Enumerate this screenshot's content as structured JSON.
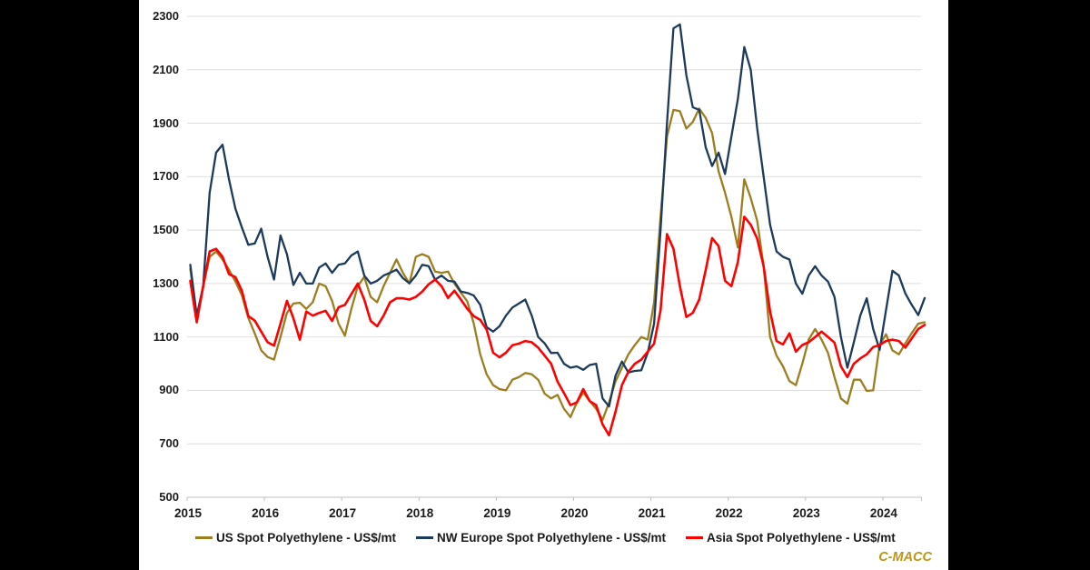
{
  "brand": "C-MACC",
  "chart_data": {
    "type": "line",
    "title": "",
    "xlabel": "",
    "ylabel": "",
    "x_start_year": 2015,
    "x_frequency": "monthly",
    "x_tick_labels": [
      "2015",
      "2016",
      "2017",
      "2018",
      "2019",
      "2020",
      "2021",
      "2022",
      "2023",
      "2024"
    ],
    "y_tick_labels": [
      "500",
      "700",
      "900",
      "1100",
      "1300",
      "1500",
      "1700",
      "1900",
      "2100",
      "2300"
    ],
    "ylim": [
      500,
      2300
    ],
    "grid": "horizontal",
    "legend_position": "bottom",
    "series": [
      {
        "name": "US Spot Polyethylene - US$/mt",
        "color": "#9E7D1E",
        "values": [
          1355,
          1165,
          1290,
          1400,
          1420,
          1390,
          1352,
          1307,
          1256,
          1171,
          1113,
          1050,
          1025,
          1015,
          1100,
          1190,
          1225,
          1228,
          1205,
          1230,
          1300,
          1290,
          1235,
          1150,
          1105,
          1205,
          1290,
          1325,
          1250,
          1230,
          1290,
          1340,
          1390,
          1340,
          1300,
          1400,
          1410,
          1400,
          1345,
          1340,
          1345,
          1300,
          1266,
          1233,
          1150,
          1035,
          960,
          920,
          905,
          900,
          940,
          950,
          965,
          960,
          940,
          888,
          870,
          883,
          831,
          800,
          854,
          892,
          860,
          831,
          790,
          855,
          933,
          985,
          1035,
          1070,
          1100,
          1090,
          1230,
          1550,
          1850,
          1950,
          1945,
          1880,
          1905,
          1955,
          1920,
          1863,
          1720,
          1640,
          1550,
          1435,
          1690,
          1620,
          1535,
          1365,
          1100,
          1030,
          990,
          935,
          920,
          1000,
          1090,
          1130,
          1090,
          1040,
          950,
          870,
          850,
          940,
          940,
          898,
          900,
          1070,
          1110,
          1050,
          1035,
          1076,
          1115,
          1150,
          1155
        ]
      },
      {
        "name": "NW Europe Spot Polyethylene - US$/mt",
        "color": "#1B3A5C",
        "values": [
          1370,
          1180,
          1290,
          1640,
          1790,
          1820,
          1690,
          1580,
          1510,
          1445,
          1450,
          1505,
          1400,
          1315,
          1480,
          1410,
          1295,
          1340,
          1300,
          1300,
          1360,
          1375,
          1340,
          1370,
          1375,
          1405,
          1420,
          1330,
          1300,
          1310,
          1330,
          1340,
          1352,
          1320,
          1301,
          1330,
          1370,
          1365,
          1315,
          1330,
          1310,
          1307,
          1270,
          1265,
          1255,
          1220,
          1137,
          1120,
          1140,
          1180,
          1210,
          1225,
          1240,
          1180,
          1100,
          1076,
          1040,
          1041,
          1000,
          985,
          990,
          977,
          995,
          1000,
          870,
          840,
          955,
          1008,
          967,
          973,
          975,
          1041,
          1150,
          1500,
          1900,
          2255,
          2270,
          2080,
          1960,
          1950,
          1810,
          1740,
          1790,
          1710,
          1850,
          1990,
          2185,
          2100,
          1880,
          1700,
          1520,
          1420,
          1400,
          1390,
          1300,
          1262,
          1330,
          1365,
          1330,
          1307,
          1250,
          1100,
          985,
          1080,
          1180,
          1245,
          1130,
          1052,
          1200,
          1348,
          1330,
          1263,
          1220,
          1182,
          1246
        ]
      },
      {
        "name": "Asia Spot Polyethylene - US$/mt",
        "color": "#FE0000",
        "values": [
          1310,
          1155,
          1290,
          1420,
          1430,
          1400,
          1335,
          1324,
          1273,
          1178,
          1161,
          1120,
          1080,
          1068,
          1150,
          1235,
          1170,
          1090,
          1195,
          1180,
          1190,
          1198,
          1160,
          1211,
          1220,
          1260,
          1300,
          1240,
          1160,
          1140,
          1180,
          1230,
          1245,
          1245,
          1240,
          1250,
          1270,
          1297,
          1315,
          1290,
          1246,
          1273,
          1240,
          1205,
          1178,
          1164,
          1127,
          1041,
          1024,
          1041,
          1069,
          1075,
          1085,
          1080,
          1060,
          1030,
          1000,
          933,
          890,
          845,
          855,
          905,
          860,
          845,
          773,
          732,
          820,
          920,
          970,
          1000,
          1015,
          1045,
          1075,
          1200,
          1485,
          1430,
          1290,
          1175,
          1190,
          1240,
          1350,
          1470,
          1440,
          1310,
          1290,
          1380,
          1550,
          1520,
          1468,
          1365,
          1195,
          1085,
          1072,
          1113,
          1045,
          1070,
          1080,
          1100,
          1120,
          1100,
          1079,
          990,
          950,
          1000,
          1020,
          1035,
          1062,
          1070,
          1085,
          1090,
          1085,
          1060,
          1095,
          1130,
          1145
        ]
      }
    ]
  }
}
